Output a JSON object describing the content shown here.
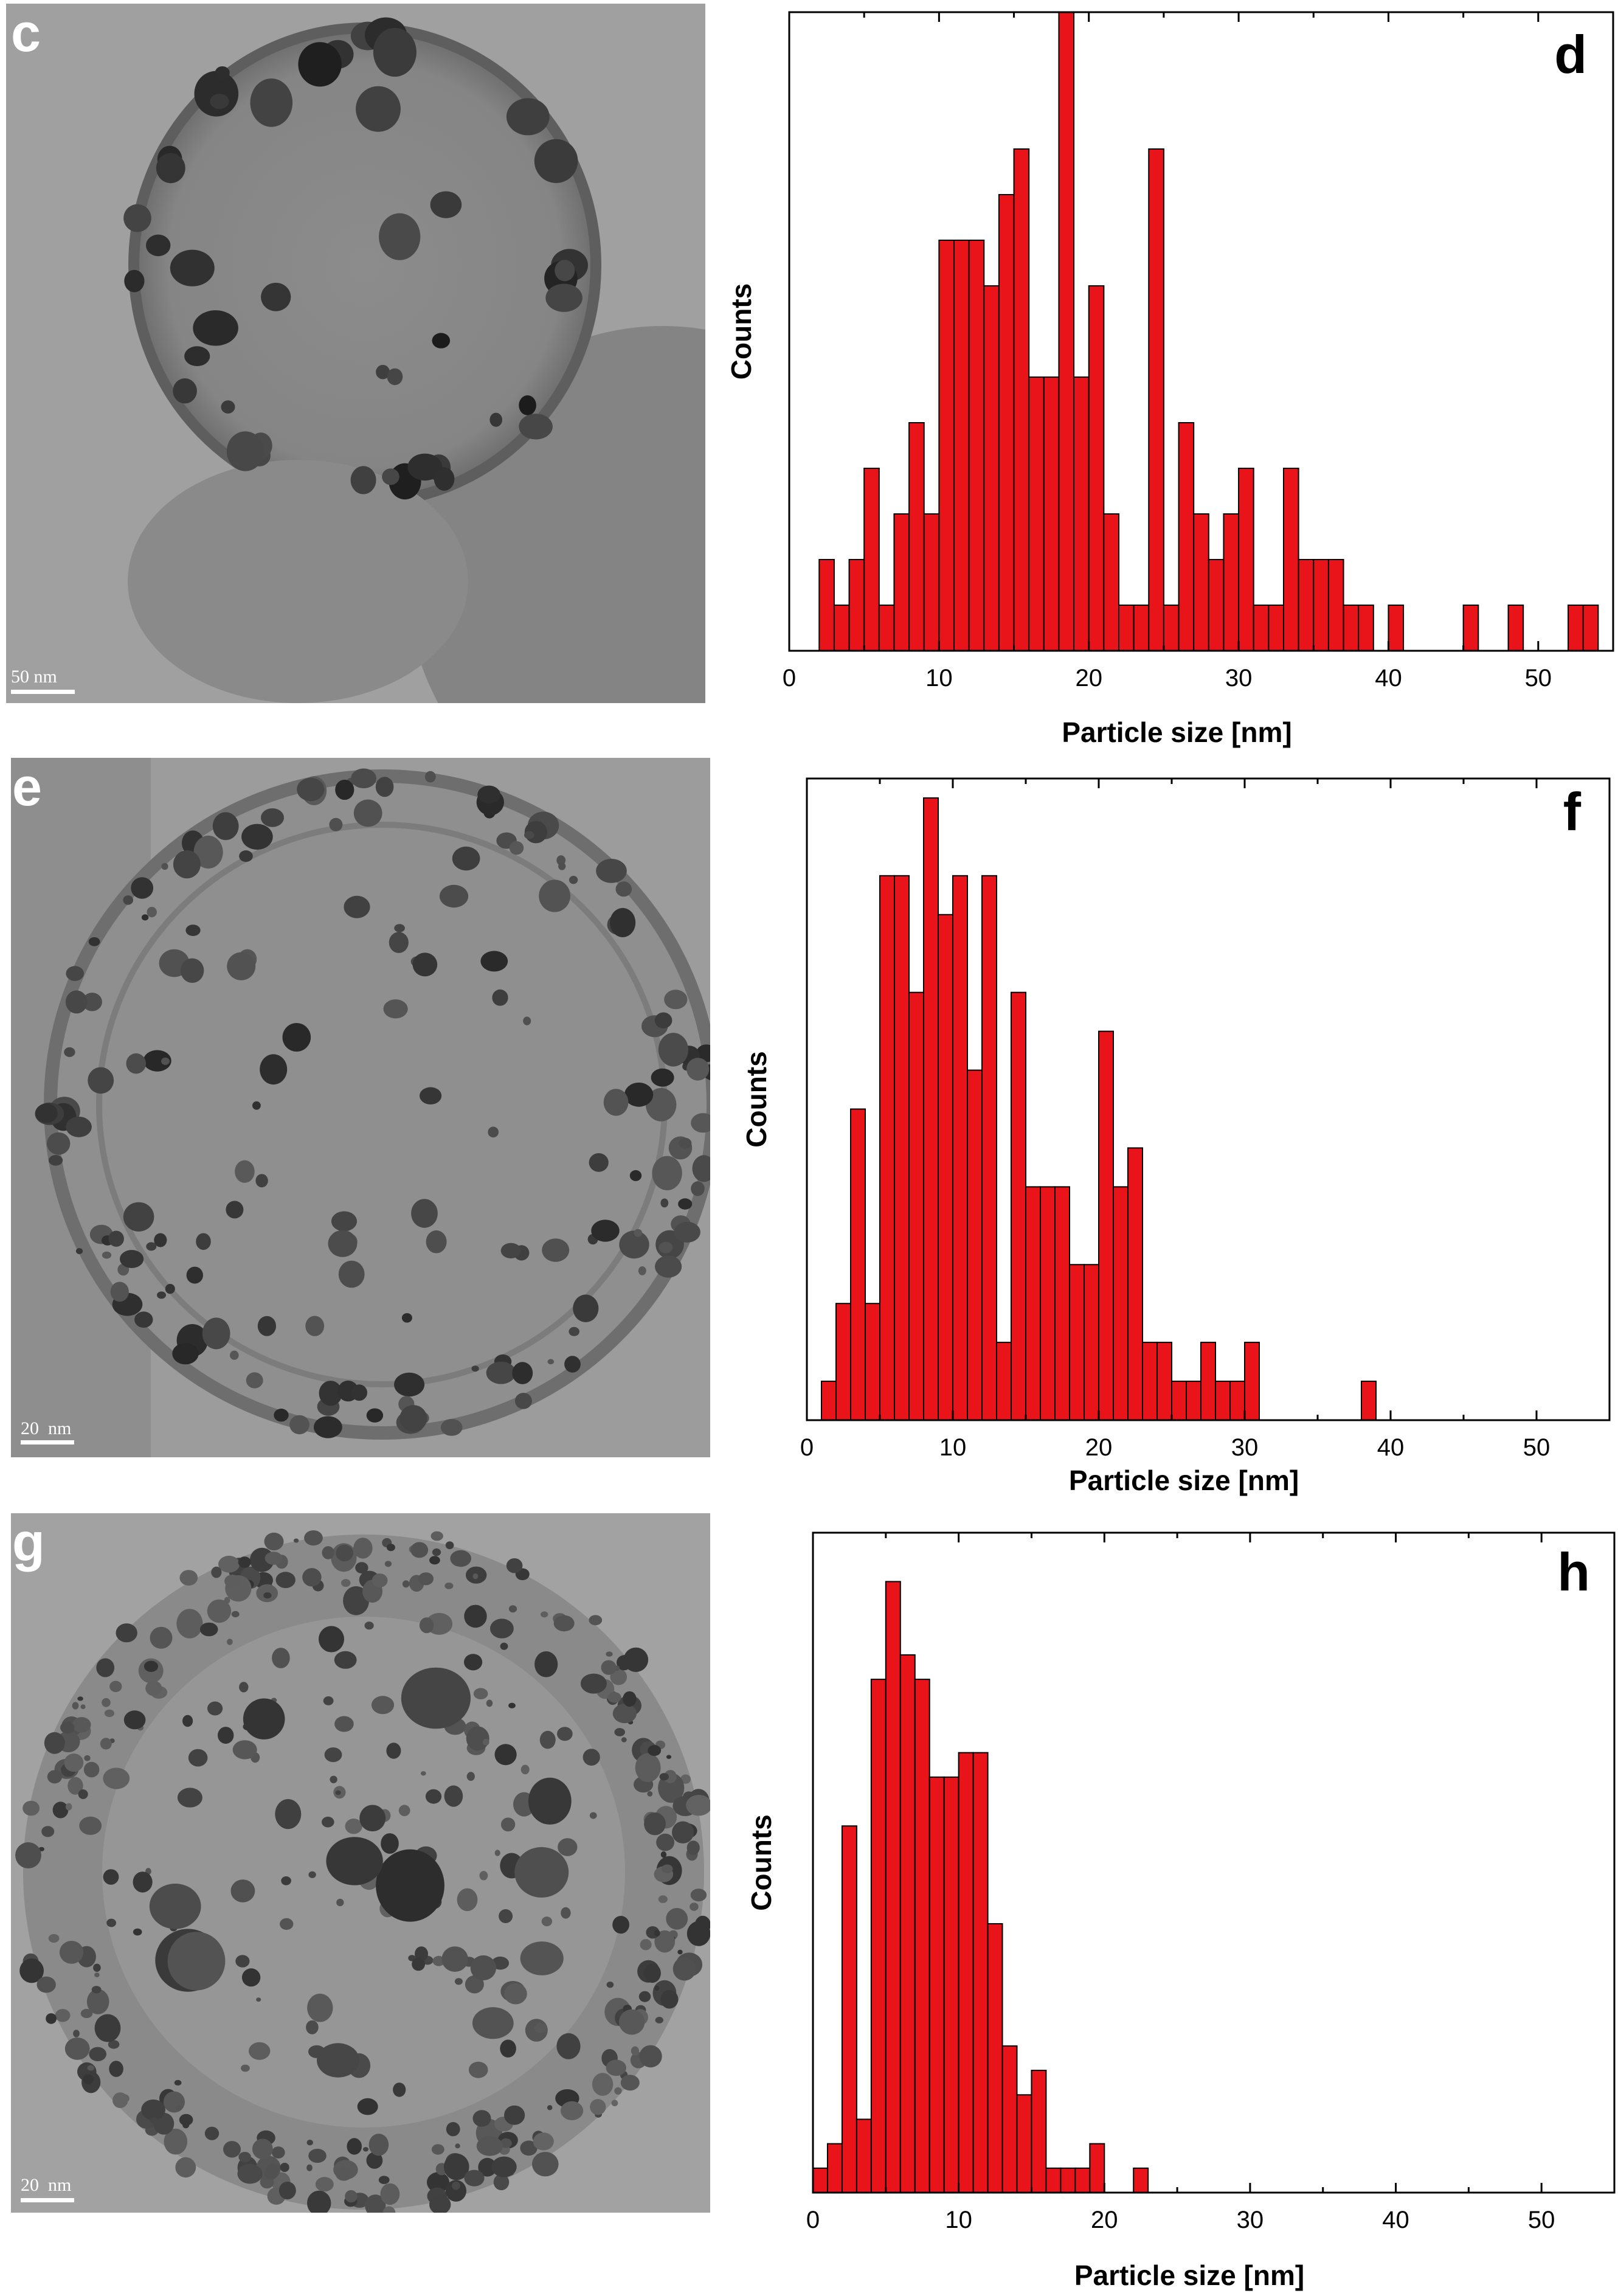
{
  "colors": {
    "bar_fill": "#e8141a",
    "bar_stroke": "#000000",
    "tem_bg": "#9a9a9a"
  },
  "micrographs": [
    {
      "id": "c",
      "letter": "c",
      "scale_label": "50 nm"
    },
    {
      "id": "e",
      "letter": "e",
      "scale_label": "20  nm"
    },
    {
      "id": "g",
      "letter": "g",
      "scale_label": "20  nm"
    }
  ],
  "chart_data": [
    {
      "id": "d",
      "type": "bar",
      "panel_letter": "d",
      "title": "",
      "xlabel": "Particle size [nm]",
      "ylabel": "Counts",
      "xlim": [
        0,
        55
      ],
      "ylim": [
        0,
        14
      ],
      "xticks": [
        0,
        10,
        20,
        30,
        40,
        50
      ],
      "y_tick_labels_shown": false,
      "bin_width": 1,
      "x": [
        2,
        3,
        4,
        5,
        6,
        7,
        8,
        9,
        10,
        11,
        12,
        13,
        14,
        15,
        16,
        17,
        18,
        19,
        20,
        21,
        22,
        23,
        24,
        25,
        26,
        27,
        28,
        29,
        30,
        31,
        32,
        33,
        34,
        35,
        36,
        37,
        38,
        40,
        45,
        48,
        52,
        53
      ],
      "values": [
        2,
        1,
        2,
        4,
        1,
        3,
        5,
        3,
        9,
        9,
        9,
        8,
        10,
        11,
        6,
        6,
        14,
        6,
        8,
        3,
        1,
        1,
        11,
        1,
        5,
        3,
        2,
        3,
        4,
        1,
        1,
        4,
        2,
        2,
        2,
        1,
        1,
        1,
        1,
        1,
        1,
        1
      ]
    },
    {
      "id": "f",
      "type": "bar",
      "panel_letter": "f",
      "title": "",
      "xlabel": "Particle size [nm]",
      "ylabel": "Counts",
      "xlim": [
        0,
        55
      ],
      "ylim": [
        0,
        16.5
      ],
      "xticks": [
        0,
        10,
        20,
        30,
        40,
        50
      ],
      "y_tick_labels_shown": false,
      "bin_width": 1,
      "x": [
        1,
        2,
        3,
        4,
        5,
        6,
        7,
        8,
        9,
        10,
        11,
        12,
        13,
        14,
        15,
        16,
        17,
        18,
        19,
        20,
        21,
        22,
        23,
        24,
        25,
        26,
        27,
        28,
        29,
        30,
        38
      ],
      "values": [
        1,
        3,
        8,
        3,
        14,
        14,
        11,
        16,
        13,
        14,
        9,
        14,
        2,
        11,
        6,
        6,
        6,
        4,
        4,
        10,
        6,
        7,
        2,
        2,
        1,
        1,
        2,
        1,
        1,
        2,
        1
      ]
    },
    {
      "id": "h",
      "type": "bar",
      "panel_letter": "h",
      "title": "",
      "xlabel": "Particle size [nm]",
      "ylabel": "Counts",
      "xlim": [
        0,
        55
      ],
      "ylim": [
        0,
        27
      ],
      "xticks": [
        0,
        10,
        20,
        30,
        40,
        50
      ],
      "y_tick_labels_shown": false,
      "bin_width": 1,
      "x": [
        0,
        1,
        2,
        3,
        4,
        5,
        6,
        7,
        8,
        9,
        10,
        11,
        12,
        13,
        14,
        15,
        16,
        17,
        18,
        19,
        22
      ],
      "values": [
        1,
        2,
        15,
        3,
        21,
        25,
        22,
        21,
        17,
        17,
        18,
        18,
        11,
        6,
        4,
        5,
        1,
        1,
        1,
        2,
        1
      ]
    }
  ]
}
